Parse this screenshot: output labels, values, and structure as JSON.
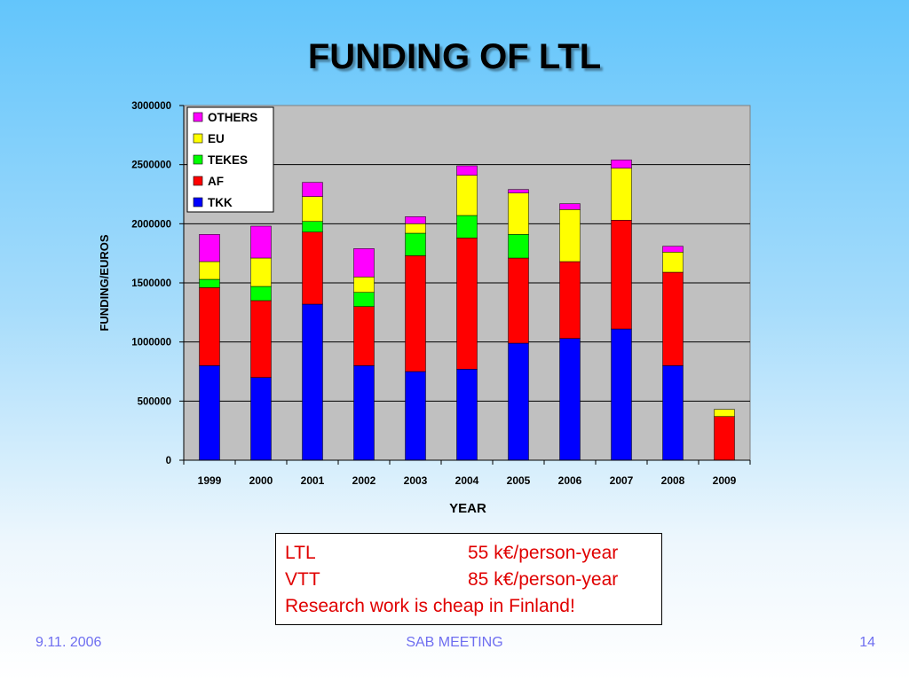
{
  "slide": {
    "title": "FUNDING OF LTL",
    "footer_date": "9.11. 2006",
    "footer_center": "SAB MEETING",
    "footer_page": "14"
  },
  "info_box": {
    "rows": [
      {
        "label": "LTL",
        "value": "55 k€/person-year"
      },
      {
        "label": "VTT",
        "value": "85 k€/person-year"
      }
    ],
    "note": "Research work is cheap in Finland!"
  },
  "chart_data": {
    "type": "bar",
    "stacked": true,
    "xlabel": "YEAR",
    "ylabel": "FUNDING/EUROS",
    "ylim": [
      0,
      3000000
    ],
    "yticks": [
      0,
      500000,
      1000000,
      1500000,
      2000000,
      2500000,
      3000000
    ],
    "grid": true,
    "legend_position": "top-left",
    "categories": [
      "1999",
      "2000",
      "2001",
      "2002",
      "2003",
      "2004",
      "2005",
      "2006",
      "2007",
      "2008",
      "2009"
    ],
    "series": [
      {
        "name": "TKK",
        "color": "#0000ff",
        "values": [
          800000,
          700000,
          1320000,
          800000,
          750000,
          770000,
          990000,
          1030000,
          1110000,
          800000,
          0
        ]
      },
      {
        "name": "AF",
        "color": "#ff0000",
        "values": [
          660000,
          650000,
          610000,
          500000,
          980000,
          1110000,
          720000,
          650000,
          920000,
          790000,
          370000
        ]
      },
      {
        "name": "TEKES",
        "color": "#00ff00",
        "values": [
          70000,
          120000,
          90000,
          120000,
          190000,
          190000,
          200000,
          0,
          0,
          0,
          0
        ]
      },
      {
        "name": "EU",
        "color": "#ffff00",
        "values": [
          150000,
          240000,
          210000,
          130000,
          80000,
          340000,
          350000,
          440000,
          440000,
          170000,
          60000
        ]
      },
      {
        "name": "OTHERS",
        "color": "#ff00ff",
        "values": [
          230000,
          270000,
          120000,
          240000,
          60000,
          80000,
          30000,
          50000,
          70000,
          50000,
          0
        ]
      }
    ]
  }
}
